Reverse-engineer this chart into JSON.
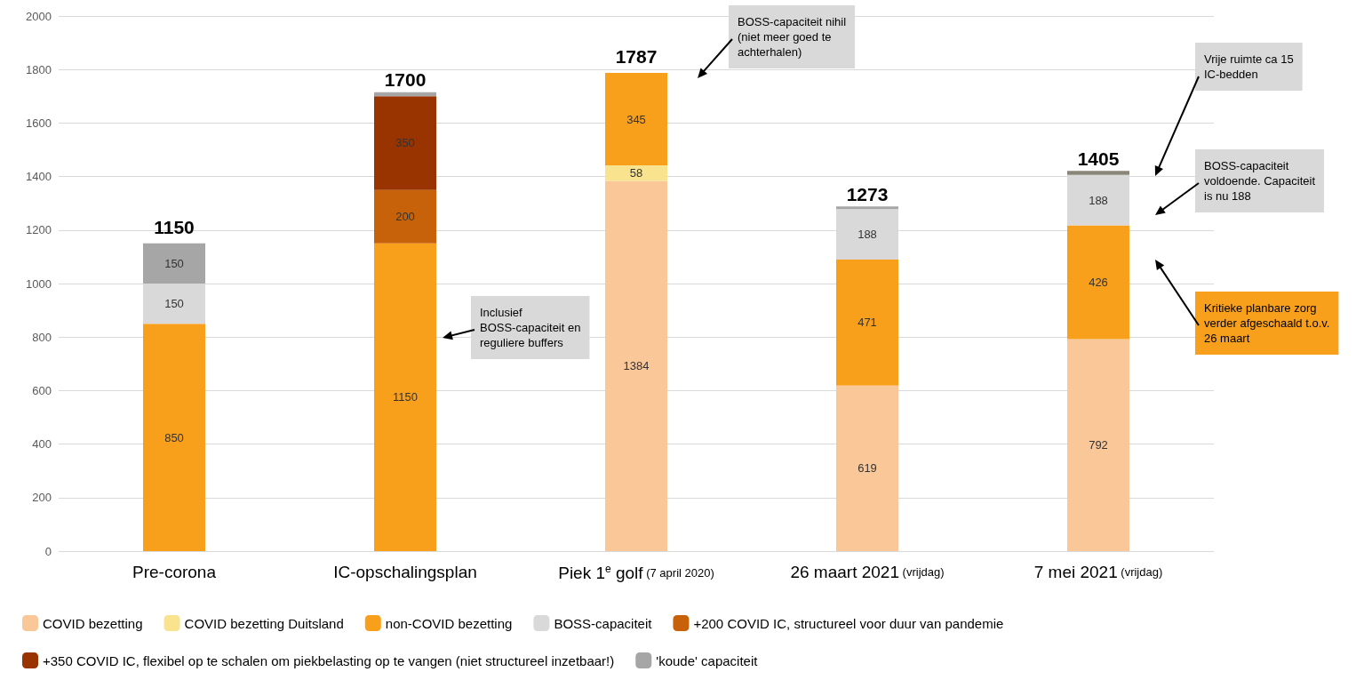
{
  "chart_data": {
    "type": "bar",
    "stacked": true,
    "categories": [
      "Pre-corona",
      "IC-opschalingsplan",
      "Piek 1$^{e}$ golf (7 april 2020)",
      "26 maart 2021 (vrijdag)",
      "7 mei 2021 (vrijdag)"
    ],
    "series": [
      {
        "name": "COVID bezetting",
        "color": "#fac898",
        "values": [
          null,
          null,
          1384,
          619,
          792
        ],
        "value_labels": [
          null,
          null,
          "1384",
          "619",
          "792"
        ]
      },
      {
        "name": "COVID bezetting Duitsland",
        "color": "#fae38f",
        "values": [
          null,
          null,
          58,
          null,
          null
        ],
        "value_labels": [
          null,
          null,
          "58",
          null,
          null
        ]
      },
      {
        "name": "non-COVID bezetting",
        "color": "#f8a01c",
        "values": [
          850,
          1150,
          345,
          471,
          426
        ],
        "value_labels": [
          "850",
          "1150",
          "345",
          "471",
          "426"
        ]
      },
      {
        "name": "BOSS-capaciteit",
        "color": "#d9d9d9",
        "values": [
          150,
          null,
          null,
          188,
          188
        ],
        "value_labels": [
          "150",
          null,
          null,
          "188",
          "188"
        ]
      },
      {
        "name": "+200 COVID IC, structureel voor duur van pandemie",
        "color": "#c8620a",
        "values": [
          null,
          200,
          null,
          null,
          null
        ],
        "value_labels": [
          null,
          "200",
          null,
          null,
          null
        ]
      },
      {
        "name": "+350 COVID IC, flexibel op te schalen om piekbelasting op te vangen (niet structureel inzetbaar!)",
        "color": "#993300",
        "values": [
          null,
          350,
          null,
          null,
          null
        ],
        "value_labels": [
          null,
          "350",
          null,
          null,
          null
        ]
      },
      {
        "name": "'koude' capaciteit",
        "color": "#a6a6a6",
        "values": [
          150,
          15,
          null,
          10,
          null
        ],
        "value_labels": [
          "150",
          null,
          null,
          null,
          null
        ]
      },
      {
        "color": "#8a8778",
        "values": [
          null,
          null,
          null,
          null,
          15
        ]
      }
    ],
    "ylim": [
      0,
      2000
    ],
    "yticks": [
      0,
      200,
      400,
      600,
      800,
      1000,
      1200,
      1400,
      1600,
      1800,
      2000
    ],
    "grid": "y",
    "legend": "bottom",
    "annotations": [
      {
        "text": "1150",
        "x": "Pre-corona",
        "y": 1150
      },
      {
        "text": "1700",
        "x": "IC-opschalingsplan",
        "y": 1700
      },
      {
        "text": "1787",
        "x": "Piek 1$^{e}$ golf (7 april 2020)",
        "y": 1787
      },
      {
        "text": "1273",
        "x": "26 maart 2021 (vrijdag)",
        "y": 1273
      },
      {
        "text": "1405",
        "x": "7 mei 2021 (vrijdag)",
        "y": 1405
      },
      "Inclusief BOSS-capaciteit en reguliere buffers",
      "BOSS-capaciteit nihil (niet meer goed te achterhalen)",
      "Vrije ruimte ca 15 IC-bedden",
      "BOSS-capaciteit voldoende. Capaciteit is nu 188",
      "Kritieke planbare zorg verder afgeschaald t.o.v. 26 maart"
    ]
  }
}
